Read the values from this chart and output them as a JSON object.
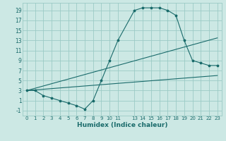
{
  "xlabel": "Humidex (Indice chaleur)",
  "bg_color": "#cce8e4",
  "grid_color": "#9bcbc6",
  "line_color": "#1a6b6b",
  "xlim": [
    -0.5,
    23.5
  ],
  "ylim": [
    -2.0,
    20.5
  ],
  "xticks": [
    0,
    1,
    2,
    3,
    4,
    5,
    6,
    7,
    8,
    9,
    10,
    11,
    13,
    14,
    15,
    16,
    17,
    18,
    19,
    20,
    21,
    22,
    23
  ],
  "yticks": [
    -1,
    1,
    3,
    5,
    7,
    9,
    11,
    13,
    15,
    17,
    19
  ],
  "line1": {
    "x": [
      0,
      1,
      2,
      3,
      4,
      5,
      6,
      7,
      8,
      9,
      10,
      11,
      13,
      14,
      15,
      16,
      17,
      18,
      19,
      20,
      21,
      22,
      23
    ],
    "y": [
      3,
      3,
      2,
      1.5,
      1,
      0.5,
      0,
      -0.7,
      1,
      5,
      9,
      13,
      19,
      19.5,
      19.5,
      19.5,
      19,
      18,
      13,
      9,
      8.5,
      8,
      8
    ]
  },
  "line2": {
    "x": [
      0,
      23
    ],
    "y": [
      3,
      6
    ]
  },
  "line3": {
    "x": [
      0,
      23
    ],
    "y": [
      3,
      13.5
    ]
  }
}
